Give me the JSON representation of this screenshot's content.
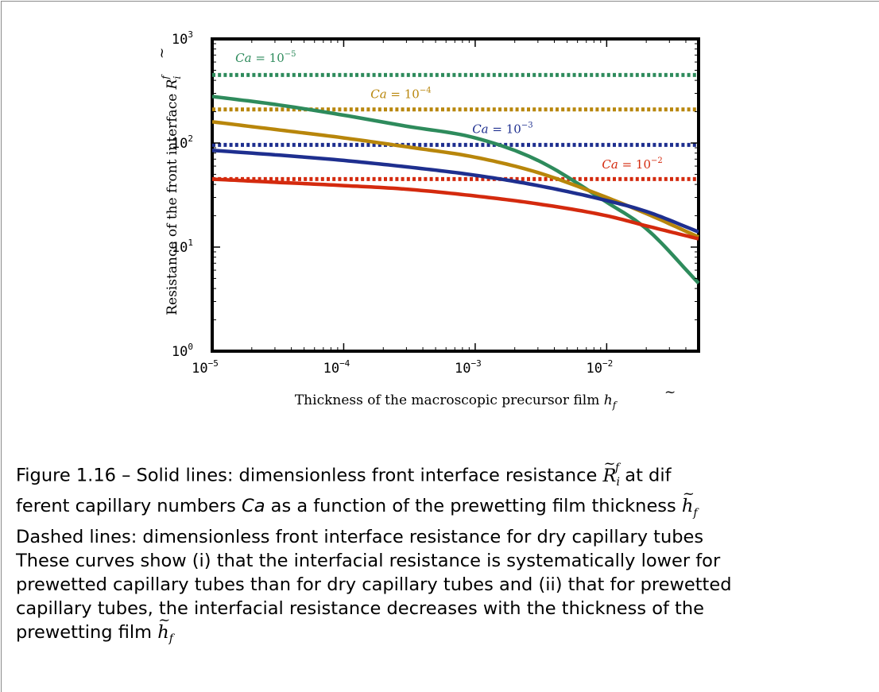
{
  "chart_data": {
    "type": "line",
    "xscale": "log",
    "yscale": "log",
    "xlim": [
      1e-05,
      0.05
    ],
    "ylim": [
      1,
      1000
    ],
    "xlabel": "Thickness of the macroscopic precursor film h̃f",
    "ylabel": "Resistance of the front interface R̃i f",
    "x_ticks": [
      {
        "base": "10",
        "exp": "−5",
        "value": 1e-05
      },
      {
        "base": "10",
        "exp": "−4",
        "value": 0.0001
      },
      {
        "base": "10",
        "exp": "−3",
        "value": 0.001
      },
      {
        "base": "10",
        "exp": "−2",
        "value": 0.01
      }
    ],
    "y_ticks": [
      {
        "base": "10",
        "exp": "0",
        "value": 1
      },
      {
        "base": "10",
        "exp": "1",
        "value": 10
      },
      {
        "base": "10",
        "exp": "2",
        "value": 100
      },
      {
        "base": "10",
        "exp": "3",
        "value": 1000
      }
    ],
    "grid": false,
    "legend": "none",
    "series": [
      {
        "label": "Ca = 10−5",
        "color": "#2e8b5c",
        "style": "solid",
        "x": [
          1e-05,
          3e-05,
          0.0001,
          0.0003,
          0.001,
          0.003,
          0.01,
          0.02,
          0.05
        ],
        "y": [
          280,
          235,
          185,
          145,
          112,
          68,
          27,
          15,
          4.5
        ]
      },
      {
        "label": "Ca = 10−5",
        "color": "#2e8b5c",
        "style": "dotted",
        "x": [
          1e-05,
          0.05
        ],
        "y": [
          450,
          450
        ]
      },
      {
        "label": "Ca = 10−4",
        "color": "#b8860b",
        "style": "solid",
        "x": [
          1e-05,
          3e-05,
          0.0001,
          0.0003,
          0.001,
          0.003,
          0.01,
          0.02,
          0.05
        ],
        "y": [
          160,
          135,
          112,
          92,
          73,
          52,
          30,
          21,
          12.5
        ]
      },
      {
        "label": "Ca = 10−4",
        "color": "#b8860b",
        "style": "dotted",
        "x": [
          1e-05,
          0.05
        ],
        "y": [
          210,
          210
        ]
      },
      {
        "label": "Ca = 10−3",
        "color": "#1e2f8f",
        "style": "solid",
        "x": [
          1e-05,
          3e-05,
          0.0001,
          0.0003,
          0.001,
          0.003,
          0.01,
          0.02,
          0.05
        ],
        "y": [
          85,
          77,
          68,
          59,
          49,
          39,
          28,
          22,
          14
        ]
      },
      {
        "label": "Ca = 10−3",
        "color": "#1e2f8f",
        "style": "dotted",
        "x": [
          1e-05,
          0.05
        ],
        "y": [
          96,
          96
        ]
      },
      {
        "label": "Ca = 10−2",
        "color": "#d42a0e",
        "style": "solid",
        "x": [
          1e-05,
          3e-05,
          0.0001,
          0.0003,
          0.001,
          0.003,
          0.01,
          0.02,
          0.05
        ],
        "y": [
          45,
          42,
          39,
          36,
          31,
          26,
          20,
          16,
          12
        ]
      },
      {
        "label": "Ca = 10−2",
        "color": "#d42a0e",
        "style": "dotted",
        "x": [
          1e-05,
          0.05
        ],
        "y": [
          45,
          45
        ]
      }
    ],
    "annotations": [
      {
        "base": "Ca = 10",
        "exp": "−5",
        "x": 1.5e-05,
        "y": 600,
        "color": "#2e8b5c"
      },
      {
        "base": "Ca = 10",
        "exp": "−4",
        "x": 0.00016,
        "y": 270,
        "color": "#b8860b"
      },
      {
        "base": "Ca = 10",
        "exp": "−3",
        "x": 0.00095,
        "y": 125,
        "color": "#1e2f8f"
      },
      {
        "base": "Ca = 10",
        "exp": "−2",
        "x": 0.0092,
        "y": 57,
        "color": "#d42a0e"
      }
    ]
  },
  "axis_labels": {
    "x_text": "Thickness of the macroscopic precursor film ",
    "x_sym": "h",
    "x_sub": "f",
    "y_text": "Resistance of the front interface ",
    "y_sym": "R",
    "y_sub": "i",
    "y_sup": "f"
  },
  "caption": {
    "line1": {
      "a": "Figure 1.16 – Solid lines: dimensionless front interface resistance ",
      "sym": "R",
      "sub": "i",
      "sup": "f",
      "b": " at dif"
    },
    "line2": {
      "a": "ferent capillary numbers ",
      "ca": "Ca",
      "b": " as a function of the prewetting film thickness ",
      "sym": "h",
      "sub": "f"
    },
    "line3": "Dashed lines: dimensionless front interface resistance for dry capillary tubes",
    "line4": "These curves show (i) that the interfacial resistance is systematically lower for",
    "line5": "prewetted capillary tubes than for dry capillary tubes and (ii) that for prewetted",
    "line6": "capillary tubes, the interfacial resistance decreases with the thickness of the",
    "line7": {
      "a": "prewetting film ",
      "sym": "h",
      "sub": "f"
    }
  }
}
